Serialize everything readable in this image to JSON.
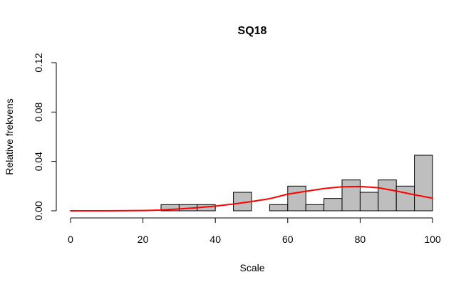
{
  "chart_data": {
    "type": "bar",
    "subtype": "histogram-with-density",
    "title": "SQ18",
    "xlabel": "Scale",
    "ylabel": "Relative frekvens",
    "xlim": [
      0,
      100
    ],
    "ylim": [
      0,
      0.12
    ],
    "x_ticks": [
      0,
      20,
      40,
      60,
      80,
      100
    ],
    "y_ticks": [
      0,
      0.04,
      0.08,
      0.12
    ],
    "y_tick_labels": [
      "0.00",
      "0.04",
      "0.08",
      "0.12"
    ],
    "grid": false,
    "bin_width": 5,
    "bins": [
      {
        "start": 25,
        "end": 30,
        "value": 0.005
      },
      {
        "start": 30,
        "end": 35,
        "value": 0.005
      },
      {
        "start": 35,
        "end": 40,
        "value": 0.005
      },
      {
        "start": 45,
        "end": 50,
        "value": 0.015
      },
      {
        "start": 55,
        "end": 60,
        "value": 0.005
      },
      {
        "start": 60,
        "end": 65,
        "value": 0.02
      },
      {
        "start": 65,
        "end": 70,
        "value": 0.005
      },
      {
        "start": 70,
        "end": 75,
        "value": 0.01
      },
      {
        "start": 75,
        "end": 80,
        "value": 0.025
      },
      {
        "start": 80,
        "end": 85,
        "value": 0.015
      },
      {
        "start": 85,
        "end": 90,
        "value": 0.025
      },
      {
        "start": 90,
        "end": 95,
        "value": 0.02
      },
      {
        "start": 95,
        "end": 100,
        "value": 0.045
      }
    ],
    "density_curve": {
      "x": [
        0,
        10,
        20,
        25,
        30,
        35,
        40,
        45,
        50,
        55,
        60,
        65,
        70,
        75,
        80,
        85,
        90,
        95,
        100
      ],
      "y": [
        0.0,
        0.0,
        0.0002,
        0.0006,
        0.0015,
        0.0025,
        0.0038,
        0.0055,
        0.0075,
        0.0098,
        0.0135,
        0.0158,
        0.018,
        0.0195,
        0.0197,
        0.0187,
        0.016,
        0.013,
        0.0102
      ]
    },
    "colors": {
      "bar_fill": "#bebebe",
      "bar_stroke": "#000000",
      "density_line": "#ff0000"
    }
  }
}
